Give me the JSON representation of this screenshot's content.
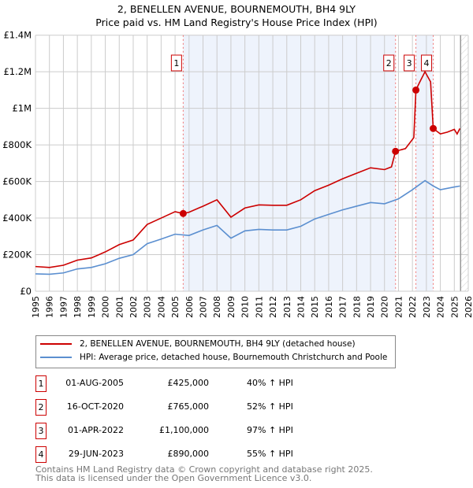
{
  "title": "2, BENELLEN AVENUE, BOURNEMOUTH, BH4 9LY",
  "subtitle": "Price paid vs. HM Land Registry's House Price Index (HPI)",
  "chart_data": {
    "type": "line",
    "title": "2, BENELLEN AVENUE, BOURNEMOUTH, BH4 9LY",
    "subtitle": "Price paid vs. HM Land Registry's House Price Index (HPI)",
    "xlim": [
      1995,
      2026
    ],
    "ylim": [
      0,
      1400000
    ],
    "xticks": [
      "1995",
      "1996",
      "1997",
      "1998",
      "1999",
      "2000",
      "2001",
      "2002",
      "2003",
      "2004",
      "2005",
      "2006",
      "2007",
      "2008",
      "2009",
      "2010",
      "2011",
      "2012",
      "2013",
      "2014",
      "2015",
      "2016",
      "2017",
      "2018",
      "2019",
      "2020",
      "2021",
      "2022",
      "2023",
      "2024",
      "2025",
      "2026"
    ],
    "yticks": [
      {
        "v": 0,
        "l": "£0"
      },
      {
        "v": 200000,
        "l": "£200K"
      },
      {
        "v": 400000,
        "l": "£400K"
      },
      {
        "v": 600000,
        "l": "£600K"
      },
      {
        "v": 800000,
        "l": "£800K"
      },
      {
        "v": 1000000,
        "l": "£1M"
      },
      {
        "v": 1200000,
        "l": "£1.2M"
      },
      {
        "v": 1400000,
        "l": "£1.4M"
      }
    ],
    "grid": true,
    "series": [
      {
        "name": "2, BENELLEN AVENUE, BOURNEMOUTH, BH4 9LY (detached house)",
        "color": "#cc0000",
        "x": [
          1995,
          1996,
          1997,
          1998,
          1999,
          2000,
          2001,
          2002,
          2003,
          2004,
          2005,
          2005.58,
          2006,
          2007,
          2008,
          2009,
          2010,
          2011,
          2012,
          2013,
          2014,
          2015,
          2016,
          2017,
          2018,
          2019,
          2020,
          2020.5,
          2020.79,
          2021.5,
          2022.1,
          2022.25,
          2022.5,
          2022.9,
          2023.3,
          2023.49,
          2024,
          2024.5,
          2025,
          2025.2,
          2025.4
        ],
        "y": [
          135000,
          130000,
          142000,
          170000,
          182000,
          215000,
          255000,
          280000,
          365000,
          400000,
          435000,
          425000,
          432000,
          465000,
          500000,
          405000,
          455000,
          472000,
          470000,
          470000,
          500000,
          550000,
          580000,
          615000,
          645000,
          675000,
          665000,
          680000,
          765000,
          780000,
          840000,
          1100000,
          1140000,
          1200000,
          1145000,
          890000,
          860000,
          870000,
          885000,
          860000,
          890000
        ]
      },
      {
        "name": "HPI: Average price, detached house, Bournemouth Christchurch and Poole",
        "color": "#5b8fd0",
        "x": [
          1995,
          1996,
          1997,
          1998,
          1999,
          2000,
          2001,
          2002,
          2003,
          2004,
          2005,
          2006,
          2007,
          2008,
          2009,
          2010,
          2011,
          2012,
          2013,
          2014,
          2015,
          2016,
          2017,
          2018,
          2019,
          2020,
          2021,
          2022,
          2022.9,
          2023.5,
          2024,
          2025,
          2025.4
        ],
        "y": [
          95000,
          93000,
          100000,
          122000,
          130000,
          150000,
          180000,
          200000,
          260000,
          285000,
          312000,
          305000,
          335000,
          360000,
          290000,
          330000,
          338000,
          335000,
          335000,
          355000,
          395000,
          420000,
          445000,
          465000,
          485000,
          478000,
          505000,
          555000,
          605000,
          575000,
          555000,
          570000,
          575000
        ]
      }
    ],
    "sales": [
      {
        "n": "1",
        "x": 2005.58,
        "y": 425000,
        "date": "01-AUG-2005",
        "price": "£425,000",
        "hpi": "40% ↑ HPI"
      },
      {
        "n": "2",
        "x": 2020.79,
        "y": 765000,
        "date": "16-OCT-2020",
        "price": "£765,000",
        "hpi": "52% ↑ HPI"
      },
      {
        "n": "3",
        "x": 2022.25,
        "y": 1100000,
        "date": "01-APR-2022",
        "price": "£1,100,000",
        "hpi": "97% ↑ HPI"
      },
      {
        "n": "4",
        "x": 2023.49,
        "y": 890000,
        "date": "29-JUN-2023",
        "price": "£890,000",
        "hpi": "55% ↑ HPI"
      }
    ],
    "shaded_ranges": [
      [
        2005.58,
        2020.79
      ],
      [
        2022.25,
        2023.49
      ]
    ],
    "forecast_from": 2025.45
  },
  "legend": {
    "items": [
      "2, BENELLEN AVENUE, BOURNEMOUTH, BH4 9LY (detached house)",
      "HPI: Average price, detached house, Bournemouth Christchurch and Poole"
    ]
  },
  "footer": {
    "line1": "Contains HM Land Registry data © Crown copyright and database right 2025.",
    "line2": "This data is licensed under the Open Government Licence v3.0."
  }
}
